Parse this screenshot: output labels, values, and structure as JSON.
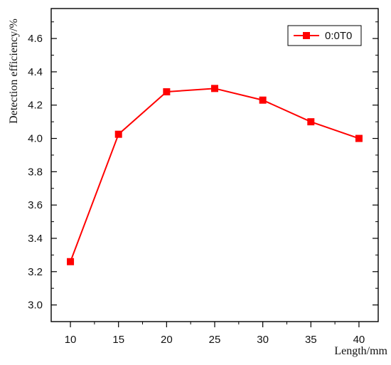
{
  "chart_data": {
    "type": "line",
    "x": [
      10,
      15,
      20,
      25,
      30,
      35,
      40
    ],
    "series": [
      {
        "name": "0:0T0",
        "values": [
          3.26,
          4.025,
          4.28,
          4.3,
          4.23,
          4.1,
          4.0
        ],
        "color": "#ff0000",
        "marker": "square"
      }
    ],
    "xlabel": "Length/mm",
    "ylabel": "Detection efficiency/%",
    "xlim": [
      8,
      42
    ],
    "ylim": [
      2.9,
      4.78
    ],
    "xticks": [
      10,
      15,
      20,
      25,
      30,
      35,
      40
    ],
    "yticks": [
      3.0,
      3.2,
      3.4,
      3.6,
      3.8,
      4.0,
      4.2,
      4.4,
      4.6
    ],
    "xtick_labels": [
      "10",
      "15",
      "20",
      "25",
      "30",
      "35",
      "40"
    ],
    "ytick_labels": [
      "3.0",
      "3.2",
      "3.4",
      "3.6",
      "3.8",
      "4.0",
      "4.2",
      "4.4",
      "4.6"
    ],
    "grid": false,
    "legend_position": "top-right"
  }
}
